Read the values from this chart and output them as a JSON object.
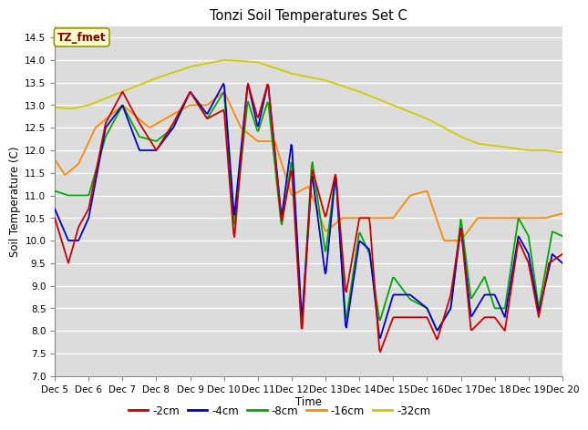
{
  "title": "Tonzi Soil Temperatures Set C",
  "xlabel": "Time",
  "ylabel": "Soil Temperature (C)",
  "ylim": [
    7.0,
    14.75
  ],
  "yticks": [
    7.0,
    7.5,
    8.0,
    8.5,
    9.0,
    9.5,
    10.0,
    10.5,
    11.0,
    11.5,
    12.0,
    12.5,
    13.0,
    13.5,
    14.0,
    14.5
  ],
  "xtick_labels": [
    "Dec 5",
    "Dec 6",
    "Dec 7",
    "Dec 8",
    "Dec 9",
    "Dec 9",
    "Dec 10",
    "Dec 11",
    "Dec 12",
    "Dec 13",
    "Dec 14",
    "Dec 15",
    "Dec 16",
    "Dec 17",
    "Dec 18",
    "Dec 19",
    "Dec 20"
  ],
  "bg_color": "#dcdcdc",
  "series_colors": [
    "#cc0000",
    "#0000cc",
    "#00aa00",
    "#ff8800",
    "#cccc00"
  ],
  "series_labels": [
    "-2cm",
    "-4cm",
    "-8cm",
    "-16cm",
    "-32cm"
  ],
  "annotation_text": "TZ_fmet",
  "annotation_bg": "#ffffcc",
  "annotation_edge": "#999900",
  "legend_labels": [
    "-2cm",
    "-4cm",
    "-8cm",
    "-16cm",
    "-32cm"
  ]
}
